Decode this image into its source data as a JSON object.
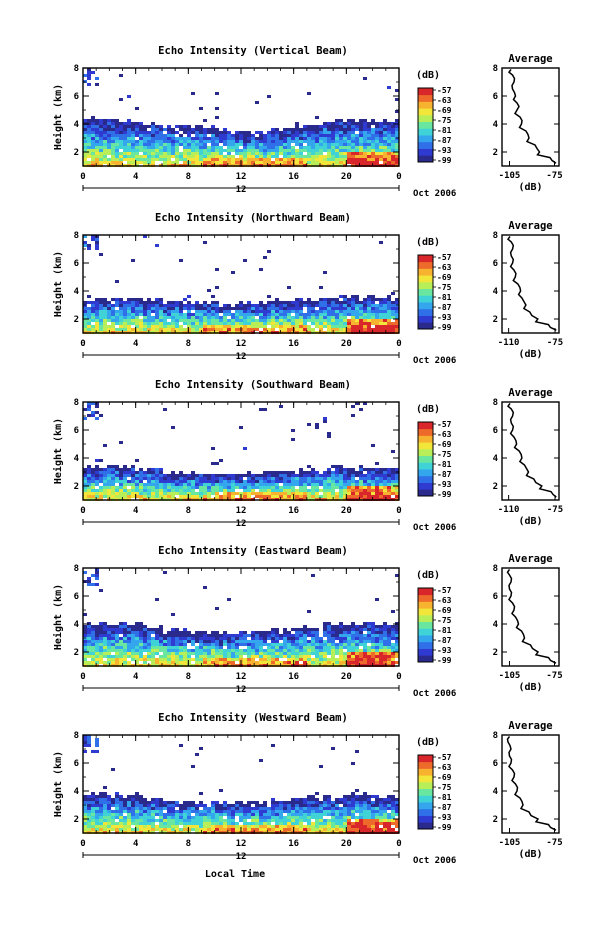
{
  "figure": {
    "colorbar_unit": "(dB)",
    "colorbar_ticks": [
      "-57",
      "-63",
      "-69",
      "-75",
      "-81",
      "-87",
      "-93",
      "-99"
    ],
    "colorbar_colors": [
      "#2a2a8c",
      "#2f3ad0",
      "#2f6fe8",
      "#33a6ee",
      "#3fd3d8",
      "#69e6a0",
      "#b8ee57",
      "#f2e63a",
      "#f7b22f",
      "#ee6a2a",
      "#d9262a"
    ],
    "day_label": "12",
    "month_label": "Oct 2006",
    "xlabel_bottom": "Local Time",
    "avg_title": "Average",
    "avg_xlabel": "(dB)"
  },
  "chart_data": [
    {
      "type": "heatmap",
      "title": "Echo Intensity (Vertical Beam)",
      "ylabel": "Height (km)",
      "x_ticks": [
        "0",
        "4",
        "8",
        "12",
        "16",
        "20",
        "0"
      ],
      "y_ticks": [
        "2",
        "4",
        "6",
        "8"
      ],
      "xlim": [
        0,
        24
      ],
      "ylim": [
        1,
        8
      ],
      "color_range": [
        -99,
        -57
      ],
      "top_height": [
        4.4,
        4.3,
        4.0,
        3.9,
        3.8,
        3.6,
        3.5,
        3.6,
        3.9,
        4.2,
        4.3,
        4.2
      ],
      "average_profile": {
        "type": "line",
        "x_ticks": [
          "-105",
          "-75"
        ],
        "y_ticks": [
          "2",
          "4",
          "6",
          "8"
        ],
        "xlim": [
          -110,
          -72
        ],
        "ylim": [
          1,
          8
        ],
        "heights": [
          1.2,
          1.6,
          2.0,
          2.5,
          3.0,
          3.5,
          4.0,
          4.5,
          5.0,
          5.5,
          6.0,
          6.5,
          7.0,
          7.5,
          7.9
        ],
        "values": [
          -74,
          -78,
          -85,
          -88,
          -92,
          -94,
          -97,
          -98,
          -100,
          -100,
          -101,
          -103,
          -102,
          -103,
          -104
        ]
      }
    },
    {
      "type": "heatmap",
      "title": "Echo Intensity (Northward Beam)",
      "ylabel": "Height (km)",
      "x_ticks": [
        "0",
        "4",
        "8",
        "12",
        "16",
        "20",
        "0"
      ],
      "y_ticks": [
        "2",
        "4",
        "6",
        "8"
      ],
      "xlim": [
        0,
        24
      ],
      "ylim": [
        1,
        8
      ],
      "color_range": [
        -99,
        -57
      ],
      "top_height": [
        3.4,
        3.5,
        3.4,
        3.3,
        3.2,
        3.1,
        3.2,
        3.3,
        3.4,
        3.6,
        3.7,
        3.6
      ],
      "average_profile": {
        "type": "line",
        "x_ticks": [
          "-110",
          "-75"
        ],
        "y_ticks": [
          "2",
          "4",
          "6",
          "8"
        ],
        "xlim": [
          -115,
          -72
        ],
        "ylim": [
          1,
          8
        ],
        "heights": [
          1.2,
          1.6,
          2.0,
          2.5,
          3.0,
          3.5,
          4.0,
          4.5,
          5.0,
          5.5,
          6.0,
          6.5,
          7.0,
          7.5,
          7.9
        ],
        "values": [
          -74,
          -80,
          -88,
          -94,
          -97,
          -100,
          -101,
          -103,
          -105,
          -106,
          -107,
          -108,
          -107,
          -108,
          -109
        ]
      }
    },
    {
      "type": "heatmap",
      "title": "Echo Intensity (Southward Beam)",
      "ylabel": "Height (km)",
      "x_ticks": [
        "0",
        "4",
        "8",
        "12",
        "16",
        "20",
        "0"
      ],
      "y_ticks": [
        "2",
        "4",
        "6",
        "8"
      ],
      "xlim": [
        0,
        24
      ],
      "ylim": [
        1,
        8
      ],
      "color_range": [
        -99,
        -57
      ],
      "top_height": [
        3.4,
        3.4,
        3.2,
        3.0,
        2.9,
        2.8,
        2.9,
        3.1,
        3.2,
        3.3,
        3.4,
        3.3
      ],
      "average_profile": {
        "type": "line",
        "x_ticks": [
          "-110",
          "-75"
        ],
        "y_ticks": [
          "2",
          "4",
          "6",
          "8"
        ],
        "xlim": [
          -115,
          -72
        ],
        "ylim": [
          1,
          8
        ],
        "heights": [
          1.2,
          1.6,
          2.0,
          2.5,
          3.0,
          3.5,
          4.0,
          4.5,
          5.0,
          5.5,
          6.0,
          6.5,
          7.0,
          7.5,
          7.9
        ],
        "values": [
          -74,
          -78,
          -85,
          -91,
          -95,
          -98,
          -100,
          -102,
          -104,
          -106,
          -107,
          -108,
          -107,
          -108,
          -109
        ]
      }
    },
    {
      "type": "heatmap",
      "title": "Echo Intensity (Eastward Beam)",
      "ylabel": "Height (km)",
      "x_ticks": [
        "0",
        "4",
        "8",
        "12",
        "16",
        "20",
        "0"
      ],
      "y_ticks": [
        "2",
        "4",
        "6",
        "8"
      ],
      "xlim": [
        0,
        24
      ],
      "ylim": [
        1,
        8
      ],
      "color_range": [
        -99,
        -57
      ],
      "top_height": [
        4.0,
        4.1,
        3.9,
        3.6,
        3.5,
        3.4,
        3.5,
        3.6,
        3.7,
        4.0,
        4.1,
        4.0
      ],
      "average_profile": {
        "type": "line",
        "x_ticks": [
          "-105",
          "-75"
        ],
        "y_ticks": [
          "2",
          "4",
          "6",
          "8"
        ],
        "xlim": [
          -110,
          -72
        ],
        "ylim": [
          1,
          8
        ],
        "heights": [
          1.2,
          1.6,
          2.0,
          2.5,
          3.0,
          3.5,
          4.0,
          4.5,
          5.0,
          5.5,
          6.0,
          6.5,
          7.0,
          7.5,
          7.9
        ],
        "values": [
          -74,
          -79,
          -86,
          -91,
          -95,
          -97,
          -99,
          -101,
          -102,
          -103,
          -104,
          -105,
          -104,
          -105,
          -105
        ]
      }
    },
    {
      "type": "heatmap",
      "title": "Echo Intensity (Westward Beam)",
      "ylabel": "Height (km)",
      "x_ticks": [
        "0",
        "4",
        "8",
        "12",
        "16",
        "20",
        "0"
      ],
      "y_ticks": [
        "2",
        "4",
        "6",
        "8"
      ],
      "xlim": [
        0,
        24
      ],
      "ylim": [
        1,
        8
      ],
      "color_range": [
        -99,
        -57
      ],
      "top_height": [
        3.8,
        3.7,
        3.5,
        3.3,
        3.2,
        3.2,
        3.3,
        3.4,
        3.5,
        3.6,
        3.7,
        3.6
      ],
      "average_profile": {
        "type": "line",
        "x_ticks": [
          "-105",
          "-75"
        ],
        "y_ticks": [
          "2",
          "4",
          "6",
          "8"
        ],
        "xlim": [
          -110,
          -72
        ],
        "ylim": [
          1,
          8
        ],
        "heights": [
          1.2,
          1.6,
          2.0,
          2.5,
          3.0,
          3.5,
          4.0,
          4.5,
          5.0,
          5.5,
          6.0,
          6.5,
          7.0,
          7.5,
          7.9
        ],
        "values": [
          -74,
          -79,
          -86,
          -92,
          -96,
          -98,
          -100,
          -101,
          -102,
          -103,
          -104,
          -105,
          -104,
          -106,
          -105
        ]
      }
    }
  ]
}
